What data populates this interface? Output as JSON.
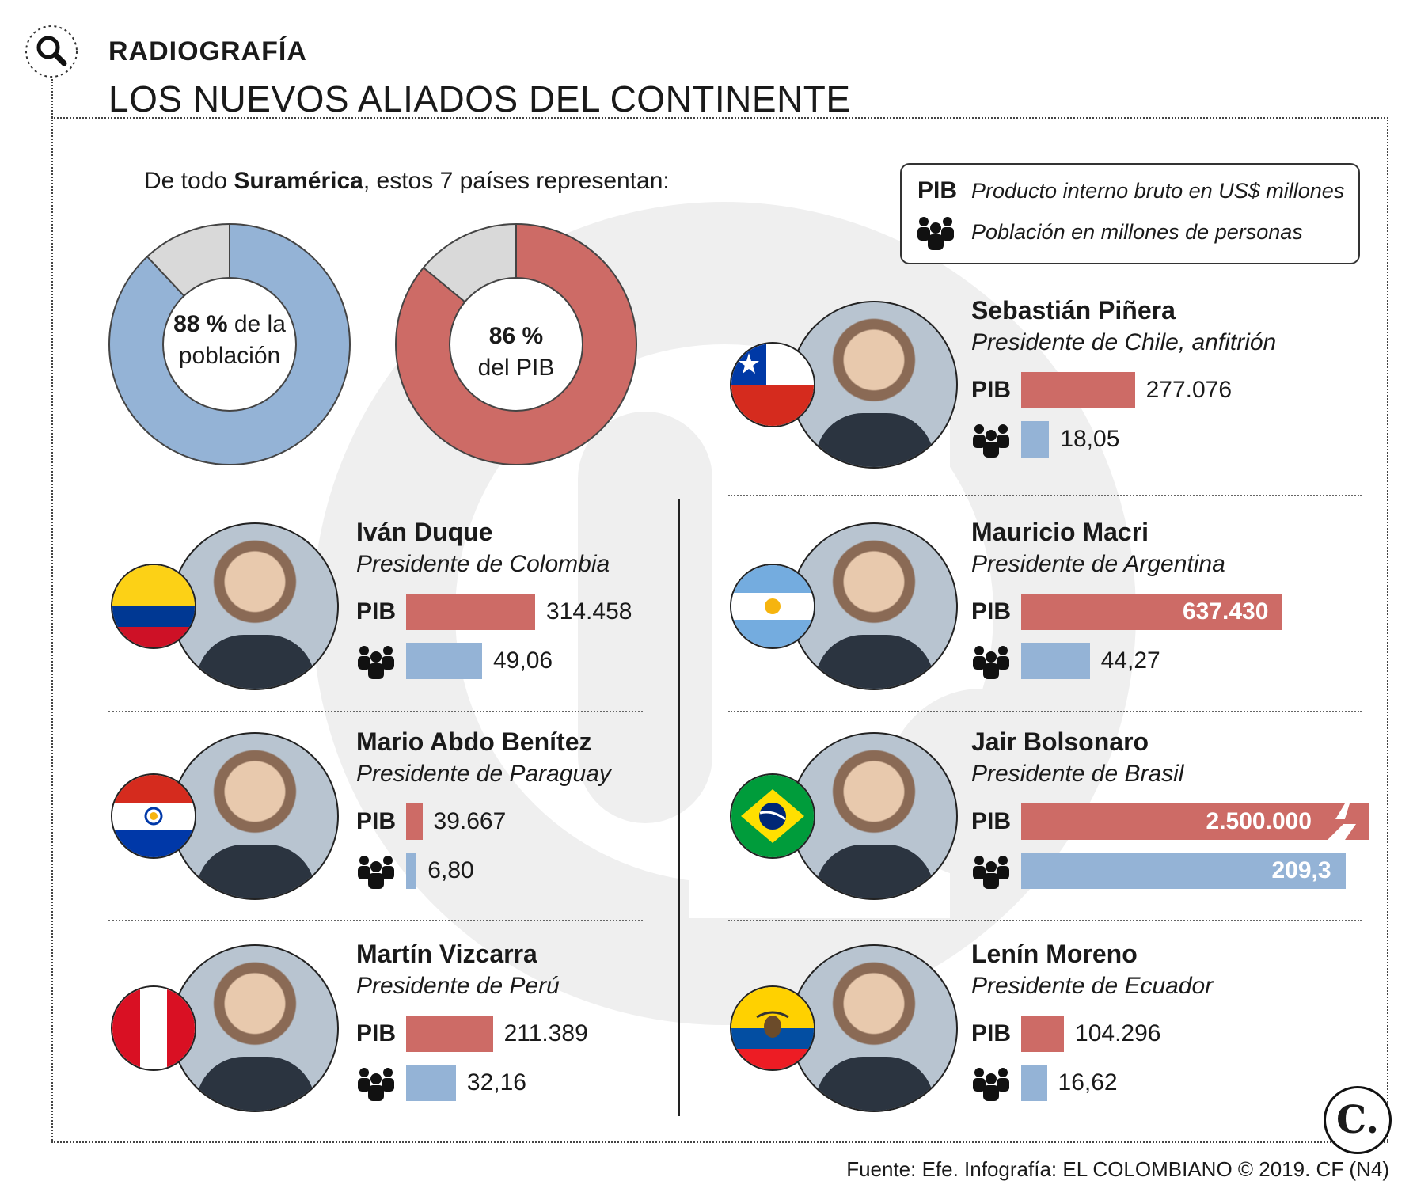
{
  "header": {
    "kicker": "RADIOGRAFÍA",
    "title": "LOS NUEVOS ALIADOS DEL CONTINENTE"
  },
  "intro": {
    "prefix": "De todo ",
    "bold": "Suramérica",
    "suffix": ", estos 7 países representan:"
  },
  "legend": {
    "pib_key": "PIB",
    "pib_text": "Producto interno bruto en US$ millones",
    "pop_text": "Población en millones de personas"
  },
  "colors": {
    "pib": "#cd6b66",
    "population": "#94b3d6",
    "remainder": "#d9d9d9"
  },
  "chart_data": [
    {
      "type": "pie",
      "slices": [
        {
          "label": "88 % de la población",
          "value": 88
        },
        {
          "label": "resto",
          "value": 12
        }
      ],
      "label_bold": "88 %",
      "label_rest_1": " de la",
      "label_rest_2": "población"
    },
    {
      "type": "pie",
      "slices": [
        {
          "label": "86 % del PIB",
          "value": 86
        },
        {
          "label": "resto",
          "value": 14
        }
      ],
      "label_bold": "86 %",
      "label_rest_2": "del PIB"
    },
    {
      "type": "bar",
      "categories": [
        "Sebastián Piñera",
        "Iván Duque",
        "Mauricio Macri",
        "Mario Abdo Benítez",
        "Jair Bolsonaro",
        "Martín Vizcarra",
        "Lenín Moreno"
      ],
      "series": [
        {
          "name": "PIB",
          "values": [
            277076,
            314458,
            637430,
            39667,
            2500000,
            211389,
            104296
          ]
        },
        {
          "name": "Población",
          "values": [
            18.05,
            49.06,
            44.27,
            6.8,
            209.3,
            32.16,
            16.62
          ]
        }
      ]
    }
  ],
  "presidents": [
    {
      "name": "Sebastián Piñera",
      "role": "Presidente de Chile, anfitrión",
      "pib_label": "277.076",
      "pop_label": "18,05",
      "pib": 277076,
      "pop": 18.05,
      "flag": "chile-flag-icon"
    },
    {
      "name": "Iván Duque",
      "role": "Presidente de Colombia",
      "pib_label": "314.458",
      "pop_label": "49,06",
      "pib": 314458,
      "pop": 49.06,
      "flag": "colombia-flag-icon"
    },
    {
      "name": "Mauricio Macri",
      "role": "Presidente de Argentina",
      "pib_label": "637.430",
      "pop_label": "44,27",
      "pib": 637430,
      "pop": 44.27,
      "flag": "argentina-flag-icon"
    },
    {
      "name": "Mario Abdo Benítez",
      "role": "Presidente de Paraguay",
      "pib_label": "39.667",
      "pop_label": "6,80",
      "pib": 39667,
      "pop": 6.8,
      "flag": "paraguay-flag-icon"
    },
    {
      "name": "Jair Bolsonaro",
      "role": "Presidente de Brasil",
      "pib_label": "2.500.000",
      "pop_label": "209,3",
      "pib": 2500000,
      "pop": 209.3,
      "flag": "brazil-flag-icon"
    },
    {
      "name": "Martín Vizcarra",
      "role": "Presidente de Perú",
      "pib_label": "211.389",
      "pop_label": "32,16",
      "pib": 211389,
      "pop": 32.16,
      "flag": "peru-flag-icon"
    },
    {
      "name": "Lenín Moreno",
      "role": "Presidente de Ecuador",
      "pib_label": "104.296",
      "pop_label": "16,62",
      "pib": 104296,
      "pop": 16.62,
      "flag": "ecuador-flag-icon"
    }
  ],
  "footer": {
    "source": "Fuente: Efe. Infografía: EL COLOMBIANO © 2019. CF (N4)",
    "logo": "C."
  }
}
